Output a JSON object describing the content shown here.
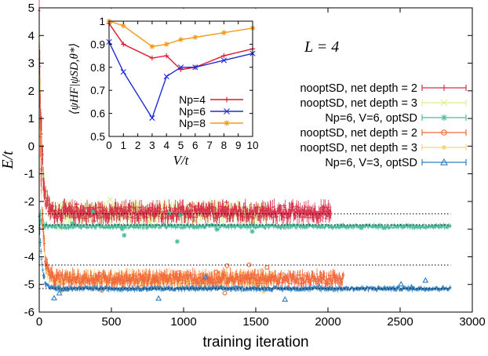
{
  "chart_data": [
    {
      "type": "scatter",
      "title": "",
      "xlabel": "training iteration",
      "ylabel": "E/t",
      "xlim": [
        0,
        3000
      ],
      "ylim": [
        -6,
        5
      ],
      "xticks": [
        "0",
        "500",
        "1000",
        "1500",
        "2000",
        "2500",
        "3000"
      ],
      "yticks": [
        "-6",
        "-5",
        "-4",
        "-3",
        "-2",
        "-1",
        "0",
        "1",
        "2",
        "3",
        "4",
        "5"
      ],
      "annotation": "L = 4",
      "grid": false,
      "legend_position": "right",
      "reference_lines": [
        {
          "y": -2.45,
          "x_range": [
            0,
            2850
          ]
        },
        {
          "y": -2.85,
          "x_range": [
            0,
            2850
          ]
        },
        {
          "y": -4.3,
          "x_range": [
            0,
            2850
          ]
        },
        {
          "y": -5.15,
          "x_range": [
            0,
            2850
          ]
        }
      ],
      "series": [
        {
          "name": "nooptSD, net depth = 2",
          "color": "#d62f4a",
          "marker": "plus",
          "x_end": 2020,
          "plateau": -2.4,
          "start": 4.1,
          "noise": 0.22
        },
        {
          "name": "nooptSD, net depth = 3",
          "color": "#dbef8e",
          "marker": "cross",
          "x_end": 1580,
          "plateau": -2.4,
          "start": 3.7,
          "noise": 0.22
        },
        {
          "name": "Np=6, V=6, optSD",
          "color": "#4bbb9b",
          "marker": "star",
          "x_end": 2850,
          "plateau": -2.9,
          "start": -2.5,
          "noise": 0.06
        },
        {
          "name": "nooptSD, net depth = 2",
          "color": "#f0693c",
          "marker": "circle",
          "x_end": 2110,
          "plateau": -4.8,
          "start": 3.2,
          "noise": 0.18
        },
        {
          "name": "nooptSD, net depth = 3",
          "color": "#fcd27e",
          "marker": "dot",
          "x_end": 1640,
          "plateau": -4.8,
          "start": 3.0,
          "noise": 0.18
        },
        {
          "name": "Np=6, V=3, optSD",
          "color": "#2f7fc0",
          "marker": "triangle",
          "x_end": 2850,
          "plateau": -5.15,
          "start": -2.6,
          "noise": 0.06
        }
      ]
    },
    {
      "type": "line",
      "title": "",
      "xlabel": "V/t",
      "ylabel": "⟨ψHF|ψSD,θ*⟩",
      "xlim": [
        0,
        10
      ],
      "ylim": [
        0.5,
        1
      ],
      "xticks": [
        "0",
        "1",
        "2",
        "3",
        "4",
        "5",
        "6",
        "7",
        "8",
        "9",
        "10"
      ],
      "yticks": [
        "0.5",
        "0.6",
        "0.7",
        "0.8",
        "0.9",
        "1"
      ],
      "x": [
        0,
        1,
        3,
        4,
        5,
        6,
        8,
        10
      ],
      "series": [
        {
          "name": "Np=4",
          "color": "#e0192d",
          "marker": "plus",
          "values": [
            0.99,
            0.9,
            0.84,
            0.85,
            0.79,
            0.8,
            0.85,
            0.88
          ]
        },
        {
          "name": "Np=6",
          "color": "#1f2bd6",
          "marker": "cross",
          "values": [
            0.91,
            0.78,
            0.58,
            0.76,
            0.8,
            0.8,
            0.83,
            0.86
          ]
        },
        {
          "name": "Np=8",
          "color": "#f39a1b",
          "marker": "star",
          "values": [
            1.0,
            0.98,
            0.89,
            0.9,
            0.92,
            0.93,
            0.95,
            0.97
          ]
        }
      ]
    }
  ]
}
